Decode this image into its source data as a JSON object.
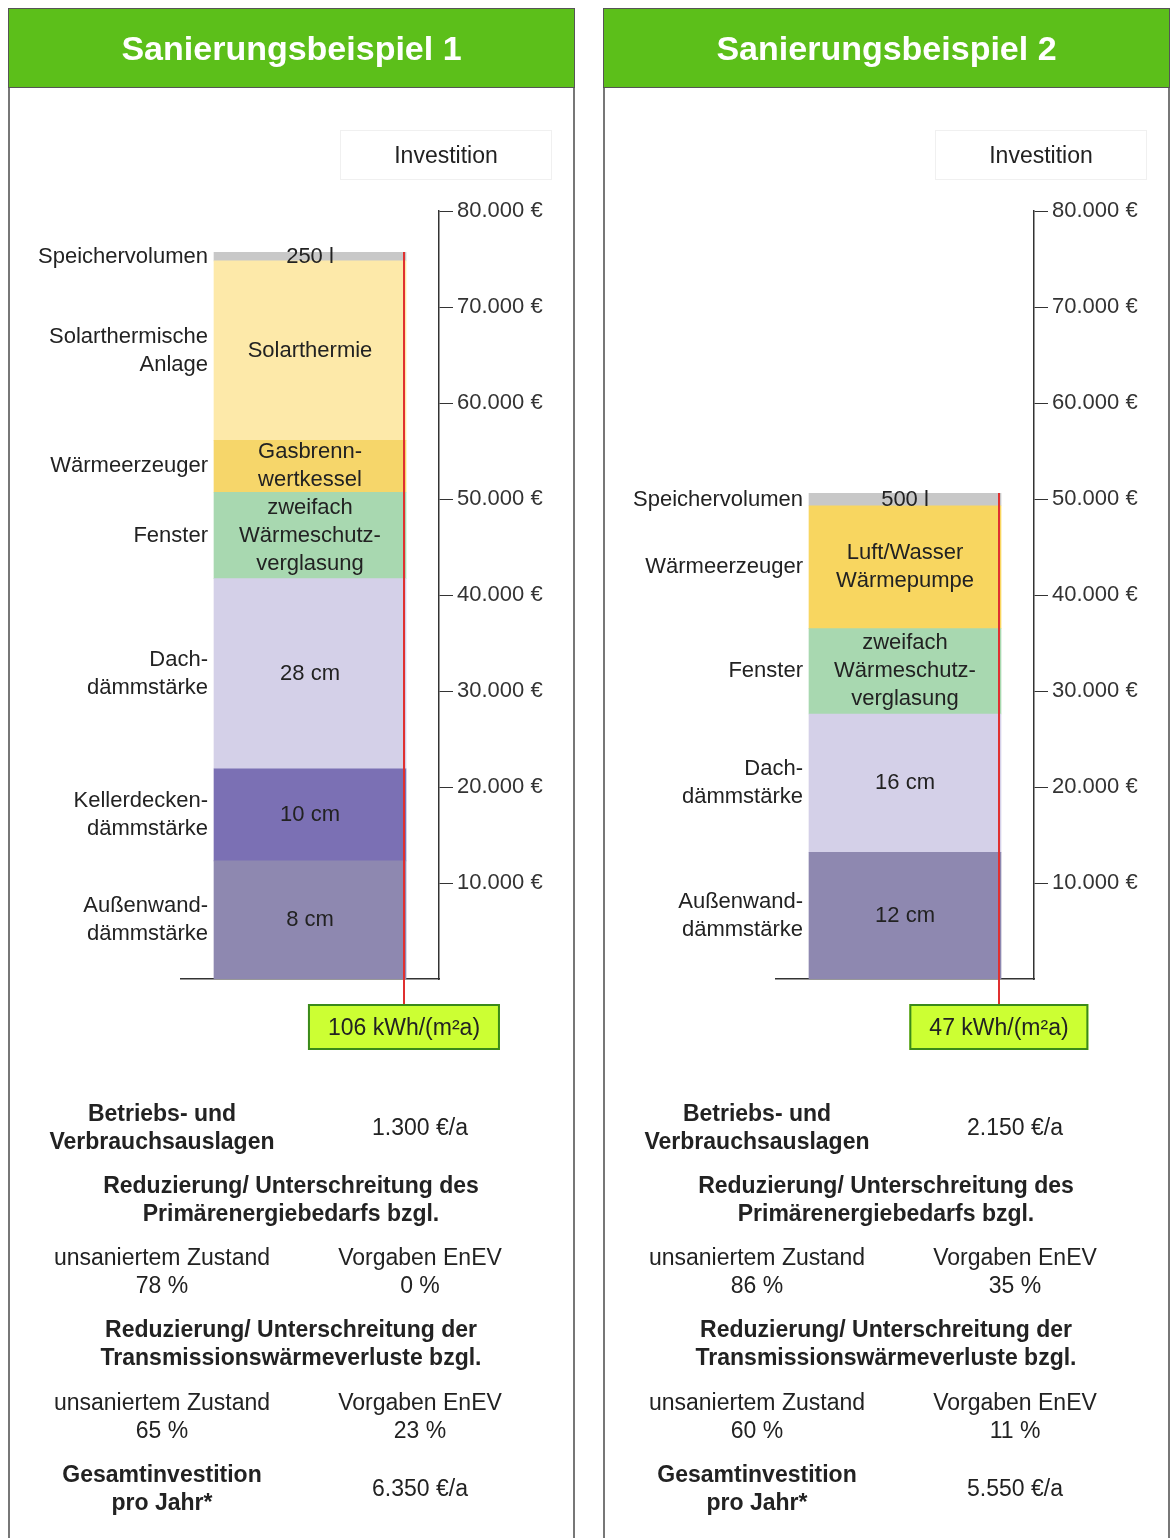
{
  "chart_data": [
    {
      "type": "bar",
      "title": "Sanierungsbeispiel 1",
      "ylabel": "Investition",
      "stacked": true,
      "legend": false,
      "tick_labels": "y",
      "categories": [
        null
      ],
      "ylim": [
        0,
        80000
      ],
      "yticks": [
        {
          "value": 10000,
          "label": "10.000 €"
        },
        {
          "value": 20000,
          "label": "20.000 €"
        },
        {
          "value": 30000,
          "label": "30.000 €"
        },
        {
          "value": 40000,
          "label": "40.000 €"
        },
        {
          "value": 50000,
          "label": "50.000 €"
        },
        {
          "value": 60000,
          "label": "60.000 €"
        },
        {
          "value": 70000,
          "label": "70.000 €"
        },
        {
          "value": 80000,
          "label": "80.000 €"
        }
      ],
      "series": [
        {
          "name": "Außenwand-dämmstärke",
          "color": "#8e88b0",
          "values": [
            12300
          ]
        },
        {
          "name": "Kellerdecken-dämmstärke",
          "color": "#7b70b4",
          "values": [
            9600
          ]
        },
        {
          "name": "Dach-dämmstärke",
          "color": "#d4d0e8",
          "values": [
            19800
          ]
        },
        {
          "name": "Fenster",
          "color": "#a8d8b0",
          "values": [
            9000
          ]
        },
        {
          "name": "Wärmeerzeuger",
          "color": "#f6d66a",
          "values": [
            5400
          ]
        },
        {
          "name": "Solarthermische Anlage",
          "color": "#fde9a9",
          "values": [
            18700
          ]
        },
        {
          "name": "Speichervolumen",
          "color": "#c8c8c8",
          "values": [
            900
          ]
        }
      ],
      "annotations": [
        "8 cm",
        "10 cm",
        "28 cm",
        "zweifach Wärmeschutz-verglasung",
        "Gasbrenn-wertkessel",
        "Solarthermie",
        "250 l",
        "106 kWh/(m²a)",
        "Betriebs- und Verbrauchsauslagen",
        "1.300 €/a",
        "Reduzierung/ Unterschreitung des Primärenergiebedarfs bzgl.",
        "unsaniertem Zustand",
        "78 %",
        "Vorgaben EnEV",
        "0 %",
        "Reduzierung/ Unterschreitung der Transmissionswärmeverluste bzgl.",
        "unsaniertem Zustand",
        "65 %",
        "Vorgaben EnEV",
        "23 %",
        "Gesamtinvestition pro Jahr*",
        "6.350 €/a"
      ]
    },
    {
      "type": "bar",
      "title": "Sanierungsbeispiel 2",
      "ylabel": "Investition",
      "stacked": true,
      "legend": false,
      "tick_labels": "y",
      "categories": [
        null
      ],
      "ylim": [
        0,
        80000
      ],
      "yticks": [
        {
          "value": 10000,
          "label": "10.000 €"
        },
        {
          "value": 20000,
          "label": "20.000 €"
        },
        {
          "value": 30000,
          "label": "30.000 €"
        },
        {
          "value": 40000,
          "label": "40.000 €"
        },
        {
          "value": 50000,
          "label": "50.000 €"
        },
        {
          "value": 60000,
          "label": "60.000 €"
        },
        {
          "value": 70000,
          "label": "70.000 €"
        },
        {
          "value": 80000,
          "label": "80.000 €"
        }
      ],
      "series": [
        {
          "name": "Außenwand-dämmstärke",
          "color": "#8e88b0",
          "values": [
            13200
          ]
        },
        {
          "name": "Dach-dämmstärke",
          "color": "#d4d0e8",
          "values": [
            14400
          ]
        },
        {
          "name": "Fenster",
          "color": "#a8d8b0",
          "values": [
            8900
          ]
        },
        {
          "name": "Wärmeerzeuger",
          "color": "#f8d660",
          "values": [
            12800
          ]
        },
        {
          "name": "Speichervolumen",
          "color": "#c8c8c8",
          "values": [
            1300
          ]
        }
      ],
      "annotations": [
        "12 cm",
        "16 cm",
        "zweifach Wärmeschutz-verglasung",
        "Luft/Wasser Wärmepumpe",
        "500 l",
        "47 kWh/(m²a)",
        "Betriebs- und Verbrauchsauslagen",
        "2.150 €/a",
        "Reduzierung/ Unterschreitung des Primärenergiebedarfs bzgl.",
        "unsaniertem Zustand",
        "86 %",
        "Vorgaben EnEV",
        "35 %",
        "Reduzierung/ Unterschreitung der Transmissionswärmeverluste bzgl.",
        "unsaniertem Zustand",
        "60 %",
        "Vorgaben EnEV",
        "11 %",
        "Gesamtinvestition pro Jahr*",
        "5.550 €/a"
      ]
    }
  ]
}
